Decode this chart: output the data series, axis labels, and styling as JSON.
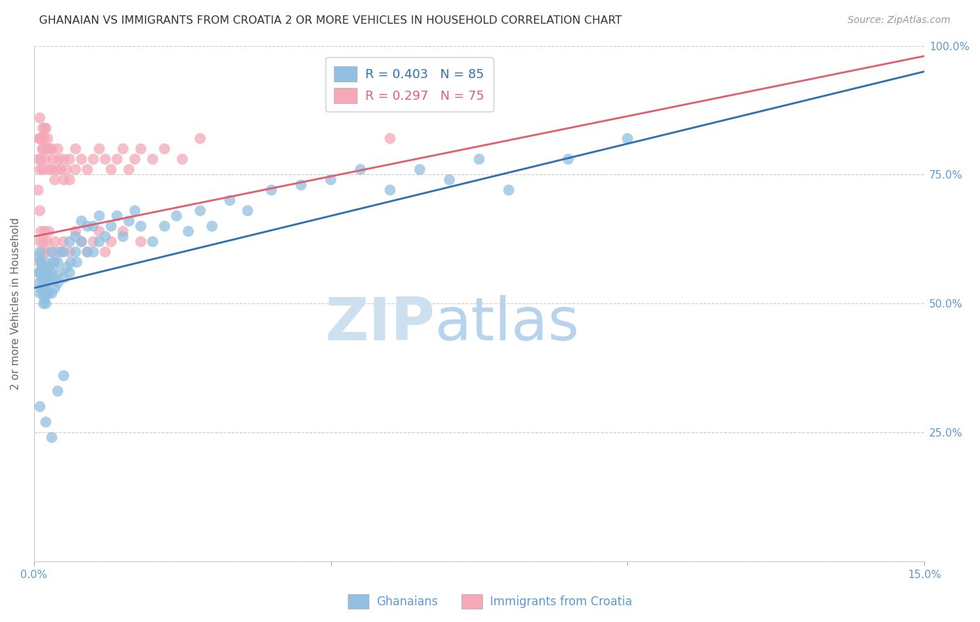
{
  "title": "GHANAIAN VS IMMIGRANTS FROM CROATIA 2 OR MORE VEHICLES IN HOUSEHOLD CORRELATION CHART",
  "source": "Source: ZipAtlas.com",
  "ylabel": "2 or more Vehicles in Household",
  "xmin": 0.0,
  "xmax": 0.15,
  "ymin": 0.0,
  "ymax": 1.0,
  "ghanaian_R": 0.403,
  "ghanaian_N": 85,
  "croatia_R": 0.297,
  "croatia_N": 75,
  "blue_color": "#92c0e0",
  "pink_color": "#f4a8b8",
  "blue_line_color": "#3070b0",
  "pink_line_color": "#e06070",
  "axis_color": "#5b9bd5",
  "legend_label_blue": "Ghanaians",
  "legend_label_pink": "Immigrants from Croatia",
  "blue_line_y0": 0.53,
  "blue_line_y1": 0.95,
  "pink_line_y0": 0.63,
  "pink_line_y1": 0.98,
  "blue_x": [
    0.0008,
    0.0008,
    0.0009,
    0.001,
    0.001,
    0.001,
    0.0012,
    0.0012,
    0.0013,
    0.0014,
    0.0015,
    0.0015,
    0.0016,
    0.0016,
    0.0017,
    0.0018,
    0.0018,
    0.002,
    0.002,
    0.002,
    0.0022,
    0.0022,
    0.0023,
    0.0025,
    0.0025,
    0.0027,
    0.003,
    0.003,
    0.003,
    0.0032,
    0.0033,
    0.0035,
    0.0035,
    0.004,
    0.004,
    0.0042,
    0.0045,
    0.005,
    0.005,
    0.0055,
    0.006,
    0.006,
    0.0062,
    0.007,
    0.007,
    0.0072,
    0.008,
    0.008,
    0.009,
    0.009,
    0.01,
    0.01,
    0.011,
    0.011,
    0.012,
    0.013,
    0.014,
    0.015,
    0.016,
    0.017,
    0.018,
    0.02,
    0.022,
    0.024,
    0.026,
    0.028,
    0.03,
    0.033,
    0.036,
    0.04,
    0.045,
    0.05,
    0.055,
    0.06,
    0.065,
    0.07,
    0.075,
    0.08,
    0.09,
    0.1,
    0.001,
    0.002,
    0.003,
    0.004,
    0.005
  ],
  "blue_y": [
    0.56,
    0.59,
    0.54,
    0.52,
    0.56,
    0.6,
    0.53,
    0.58,
    0.55,
    0.57,
    0.52,
    0.56,
    0.5,
    0.55,
    0.53,
    0.51,
    0.57,
    0.5,
    0.54,
    0.58,
    0.52,
    0.56,
    0.54,
    0.52,
    0.57,
    0.55,
    0.52,
    0.56,
    0.6,
    0.55,
    0.58,
    0.53,
    0.58,
    0.54,
    0.58,
    0.56,
    0.6,
    0.55,
    0.6,
    0.57,
    0.56,
    0.62,
    0.58,
    0.6,
    0.63,
    0.58,
    0.62,
    0.66,
    0.6,
    0.65,
    0.6,
    0.65,
    0.62,
    0.67,
    0.63,
    0.65,
    0.67,
    0.63,
    0.66,
    0.68,
    0.65,
    0.62,
    0.65,
    0.67,
    0.64,
    0.68,
    0.65,
    0.7,
    0.68,
    0.72,
    0.73,
    0.74,
    0.76,
    0.72,
    0.76,
    0.74,
    0.78,
    0.72,
    0.78,
    0.82,
    0.3,
    0.27,
    0.24,
    0.33,
    0.36
  ],
  "pink_x": [
    0.0007,
    0.0008,
    0.0009,
    0.001,
    0.001,
    0.001,
    0.0012,
    0.0013,
    0.0014,
    0.0015,
    0.0015,
    0.0016,
    0.0017,
    0.0018,
    0.002,
    0.002,
    0.0022,
    0.0023,
    0.0025,
    0.0027,
    0.003,
    0.003,
    0.0032,
    0.0035,
    0.004,
    0.004,
    0.0042,
    0.0045,
    0.005,
    0.005,
    0.0055,
    0.006,
    0.006,
    0.007,
    0.007,
    0.008,
    0.009,
    0.01,
    0.011,
    0.012,
    0.013,
    0.014,
    0.015,
    0.016,
    0.017,
    0.018,
    0.02,
    0.022,
    0.025,
    0.028,
    0.001,
    0.001,
    0.001,
    0.0012,
    0.0014,
    0.0016,
    0.0018,
    0.002,
    0.0022,
    0.0025,
    0.003,
    0.0035,
    0.004,
    0.005,
    0.006,
    0.007,
    0.008,
    0.009,
    0.01,
    0.011,
    0.012,
    0.013,
    0.015,
    0.018,
    0.06
  ],
  "pink_y": [
    0.72,
    0.78,
    0.82,
    0.76,
    0.82,
    0.86,
    0.78,
    0.82,
    0.8,
    0.76,
    0.84,
    0.8,
    0.82,
    0.84,
    0.78,
    0.84,
    0.8,
    0.82,
    0.76,
    0.8,
    0.76,
    0.8,
    0.78,
    0.74,
    0.76,
    0.8,
    0.78,
    0.76,
    0.74,
    0.78,
    0.76,
    0.74,
    0.78,
    0.76,
    0.8,
    0.78,
    0.76,
    0.78,
    0.8,
    0.78,
    0.76,
    0.78,
    0.8,
    0.76,
    0.78,
    0.8,
    0.78,
    0.8,
    0.78,
    0.82,
    0.58,
    0.62,
    0.68,
    0.64,
    0.6,
    0.62,
    0.64,
    0.6,
    0.62,
    0.64,
    0.6,
    0.62,
    0.6,
    0.62,
    0.6,
    0.64,
    0.62,
    0.6,
    0.62,
    0.64,
    0.6,
    0.62,
    0.64,
    0.62,
    0.82
  ]
}
